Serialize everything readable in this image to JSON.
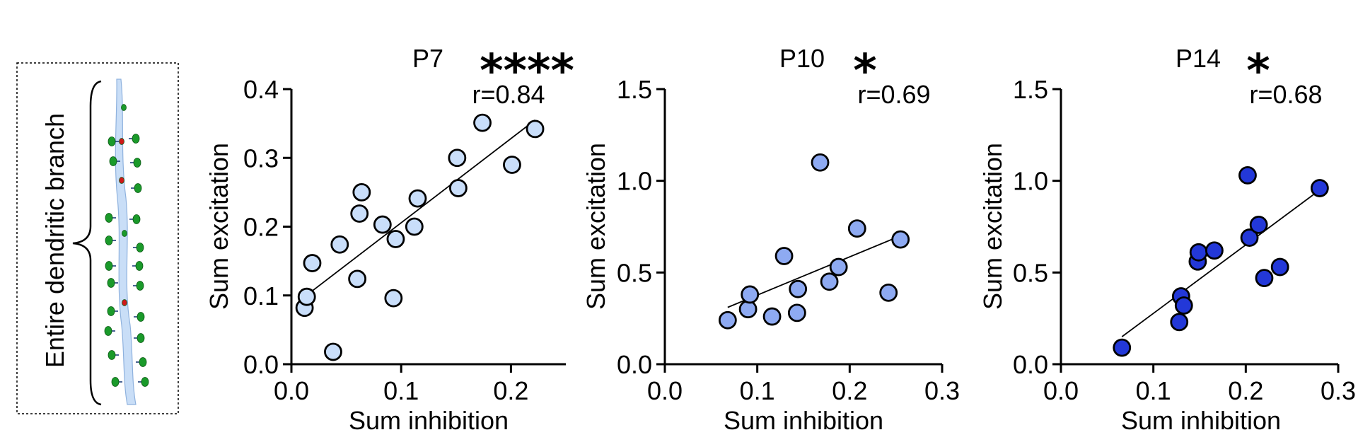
{
  "inset": {
    "label": "Entire dendritic branch"
  },
  "chart_data": [
    {
      "type": "scatter",
      "title": "P7",
      "significance": "****",
      "r_label": "r=0.84",
      "xlabel": "Sum inhibition",
      "ylabel": "Sum excitation",
      "xlim": [
        0,
        0.25
      ],
      "ylim": [
        0,
        0.4
      ],
      "xticks": [
        0.0,
        0.1,
        0.2
      ],
      "xtick_labels": [
        "0.0",
        "0.1",
        "0.2"
      ],
      "yticks": [
        0.0,
        0.1,
        0.2,
        0.3,
        0.4
      ],
      "ytick_labels": [
        "0.0",
        "0.1",
        "0.2",
        "0.3",
        "0.4"
      ],
      "marker_color": "#c9defa",
      "fit_line": {
        "x": [
          0.012,
          0.222
        ],
        "y": [
          0.098,
          0.355
        ]
      },
      "points": [
        {
          "x": 0.012,
          "y": 0.082
        },
        {
          "x": 0.014,
          "y": 0.098
        },
        {
          "x": 0.019,
          "y": 0.147
        },
        {
          "x": 0.038,
          "y": 0.018
        },
        {
          "x": 0.044,
          "y": 0.174
        },
        {
          "x": 0.06,
          "y": 0.124
        },
        {
          "x": 0.062,
          "y": 0.219
        },
        {
          "x": 0.064,
          "y": 0.25
        },
        {
          "x": 0.083,
          "y": 0.203
        },
        {
          "x": 0.093,
          "y": 0.096
        },
        {
          "x": 0.095,
          "y": 0.182
        },
        {
          "x": 0.112,
          "y": 0.2
        },
        {
          "x": 0.115,
          "y": 0.241
        },
        {
          "x": 0.151,
          "y": 0.3
        },
        {
          "x": 0.152,
          "y": 0.256
        },
        {
          "x": 0.174,
          "y": 0.351
        },
        {
          "x": 0.201,
          "y": 0.29
        },
        {
          "x": 0.222,
          "y": 0.342
        }
      ]
    },
    {
      "type": "scatter",
      "title": "P10",
      "significance": "*",
      "r_label": "r=0.69",
      "xlabel": "Sum inhibition",
      "ylabel": "Sum excitation",
      "xlim": [
        0,
        0.3
      ],
      "ylim": [
        0,
        1.5
      ],
      "xticks": [
        0.0,
        0.1,
        0.2,
        0.3
      ],
      "xtick_labels": [
        "0.0",
        "0.1",
        "0.2",
        "0.3"
      ],
      "yticks": [
        0.0,
        0.5,
        1.0,
        1.5
      ],
      "ytick_labels": [
        "0.0",
        "0.5",
        "1.0",
        "1.5"
      ],
      "marker_color": "#8eaaf2",
      "fit_line": {
        "x": [
          0.068,
          0.255
        ],
        "y": [
          0.31,
          0.7
        ]
      },
      "points": [
        {
          "x": 0.068,
          "y": 0.24
        },
        {
          "x": 0.09,
          "y": 0.3
        },
        {
          "x": 0.092,
          "y": 0.38
        },
        {
          "x": 0.116,
          "y": 0.26
        },
        {
          "x": 0.129,
          "y": 0.59
        },
        {
          "x": 0.143,
          "y": 0.28
        },
        {
          "x": 0.144,
          "y": 0.41
        },
        {
          "x": 0.168,
          "y": 1.1
        },
        {
          "x": 0.178,
          "y": 0.45
        },
        {
          "x": 0.188,
          "y": 0.53
        },
        {
          "x": 0.208,
          "y": 0.74
        },
        {
          "x": 0.242,
          "y": 0.39
        },
        {
          "x": 0.255,
          "y": 0.68
        }
      ]
    },
    {
      "type": "scatter",
      "title": "P14",
      "significance": "*",
      "r_label": "r=0.68",
      "xlabel": "Sum inhibition",
      "ylabel": "Sum excitation",
      "xlim": [
        0,
        0.3
      ],
      "ylim": [
        0,
        1.5
      ],
      "xticks": [
        0.0,
        0.1,
        0.2,
        0.3
      ],
      "xtick_labels": [
        "0.0",
        "0.1",
        "0.2",
        "0.3"
      ],
      "yticks": [
        0.0,
        0.5,
        1.0,
        1.5
      ],
      "ytick_labels": [
        "0.0",
        "0.5",
        "1.0",
        "1.5"
      ],
      "marker_color": "#2338d8",
      "fit_line": {
        "x": [
          0.066,
          0.28
        ],
        "y": [
          0.15,
          0.95
        ]
      },
      "points": [
        {
          "x": 0.066,
          "y": 0.09
        },
        {
          "x": 0.128,
          "y": 0.23
        },
        {
          "x": 0.13,
          "y": 0.37
        },
        {
          "x": 0.133,
          "y": 0.32
        },
        {
          "x": 0.148,
          "y": 0.56
        },
        {
          "x": 0.149,
          "y": 0.61
        },
        {
          "x": 0.166,
          "y": 0.62
        },
        {
          "x": 0.202,
          "y": 1.03
        },
        {
          "x": 0.204,
          "y": 0.69
        },
        {
          "x": 0.214,
          "y": 0.76
        },
        {
          "x": 0.22,
          "y": 0.47
        },
        {
          "x": 0.237,
          "y": 0.53
        },
        {
          "x": 0.28,
          "y": 0.96
        }
      ]
    }
  ]
}
